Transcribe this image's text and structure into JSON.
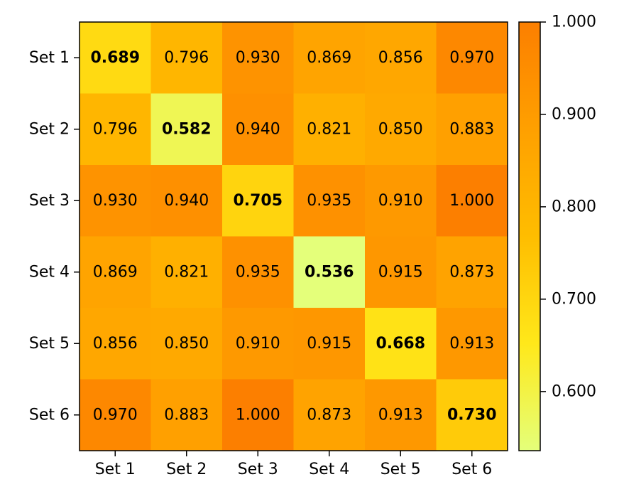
{
  "chart_data": {
    "type": "heatmap",
    "title": "",
    "xlabel": "",
    "ylabel": "",
    "x_categories": [
      "Set 1",
      "Set 2",
      "Set 3",
      "Set 4",
      "Set 5",
      "Set 6"
    ],
    "y_categories": [
      "Set 1",
      "Set 2",
      "Set 3",
      "Set 4",
      "Set 5",
      "Set 6"
    ],
    "values": [
      [
        0.689,
        0.796,
        0.93,
        0.869,
        0.856,
        0.97
      ],
      [
        0.796,
        0.582,
        0.94,
        0.821,
        0.85,
        0.883
      ],
      [
        0.93,
        0.94,
        0.705,
        0.935,
        0.91,
        1.0
      ],
      [
        0.869,
        0.821,
        0.935,
        0.536,
        0.915,
        0.873
      ],
      [
        0.856,
        0.85,
        0.91,
        0.915,
        0.668,
        0.913
      ],
      [
        0.97,
        0.883,
        1.0,
        0.873,
        0.913,
        0.73
      ]
    ],
    "value_format": "0.000",
    "bold_diagonal": true,
    "colorbar": {
      "min": 0.536,
      "max": 1.0,
      "ticks": [
        0.6,
        0.7,
        0.8,
        0.9,
        1.0
      ],
      "tick_labels": [
        "0.600",
        "0.700",
        "0.800",
        "0.900",
        "1.000"
      ],
      "colormap": "Wistia",
      "color_stops": [
        "#e4ff7a",
        "#ffe81a",
        "#ffbd00",
        "#ffa000",
        "#fc7f00"
      ]
    },
    "grid": false
  }
}
